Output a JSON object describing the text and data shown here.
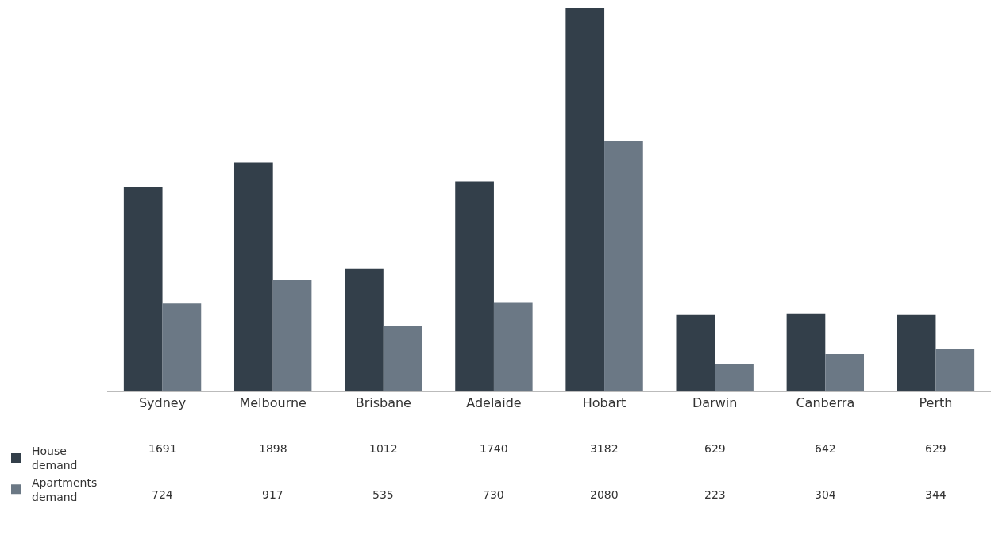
{
  "chart_data": {
    "type": "bar",
    "categories": [
      "Sydney",
      "Melbourne",
      "Brisbane",
      "Adelaide",
      "Hobart",
      "Darwin",
      "Canberra",
      "Perth"
    ],
    "series": [
      {
        "name": "House demand",
        "color": "#333f4a",
        "values": [
          1691,
          1898,
          1012,
          1740,
          3182,
          629,
          642,
          629
        ]
      },
      {
        "name": "Apartments demand",
        "color": "#6b7885",
        "values": [
          724,
          917,
          535,
          730,
          2080,
          223,
          304,
          344
        ]
      }
    ],
    "data_labels": true,
    "legend": "bottom left"
  }
}
